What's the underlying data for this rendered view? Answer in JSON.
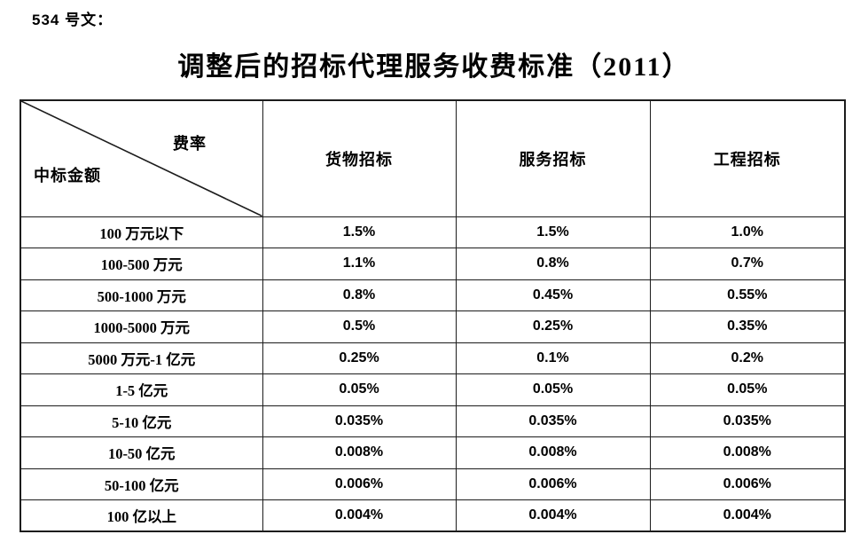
{
  "doc_label": "534 号文：",
  "title": "调整后的招标代理服务收费标准（2011）",
  "table": {
    "corner": {
      "top_right": "费率",
      "bottom_left": "中标金额"
    },
    "columns": [
      "货物招标",
      "服务招标",
      "工程招标"
    ],
    "rows": [
      {
        "label": "100 万元以下",
        "values": [
          "1.5%",
          "1.5%",
          "1.0%"
        ]
      },
      {
        "label": "100-500 万元",
        "values": [
          "1.1%",
          "0.8%",
          "0.7%"
        ]
      },
      {
        "label": "500-1000 万元",
        "values": [
          "0.8%",
          "0.45%",
          "0.55%"
        ]
      },
      {
        "label": "1000-5000 万元",
        "values": [
          "0.5%",
          "0.25%",
          "0.35%"
        ]
      },
      {
        "label": "5000 万元-1 亿元",
        "values": [
          "0.25%",
          "0.1%",
          "0.2%"
        ]
      },
      {
        "label": "1-5 亿元",
        "values": [
          "0.05%",
          "0.05%",
          "0.05%"
        ]
      },
      {
        "label": "5-10 亿元",
        "values": [
          "0.035%",
          "0.035%",
          "0.035%"
        ]
      },
      {
        "label": "10-50 亿元",
        "values": [
          "0.008%",
          "0.008%",
          "0.008%"
        ]
      },
      {
        "label": "50-100 亿元",
        "values": [
          "0.006%",
          "0.006%",
          "0.006%"
        ]
      },
      {
        "label": "100 亿以上",
        "values": [
          "0.004%",
          "0.004%",
          "0.004%"
        ]
      }
    ]
  },
  "colors": {
    "text": "#000000",
    "border": "#1c1c1c",
    "background": "#ffffff"
  }
}
